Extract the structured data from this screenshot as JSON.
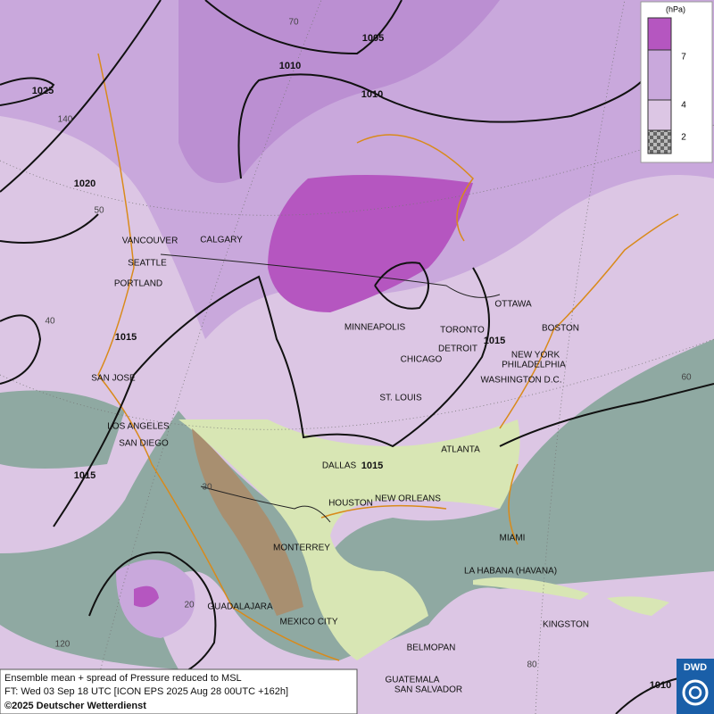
{
  "legend": {
    "unit": "(hPa)",
    "labels": [
      "7",
      "4",
      "2"
    ]
  },
  "cities": [
    "VANCOUVER",
    "CALGARY",
    "SEATTLE",
    "PORTLAND",
    "MINNEAPOLIS",
    "OTTAWA",
    "TORONTO",
    "BOSTON",
    "DETROIT",
    "CHICAGO",
    "NEW YORK",
    "PHILADELPHIA",
    "WASHINGTON D.C.",
    "ST. LOUIS",
    "SAN JOSE",
    "LOS ANGELES",
    "SAN DIEGO",
    "ATLANTA",
    "DALLAS",
    "HOUSTON",
    "NEW ORLEANS",
    "MIAMI",
    "MONTERREY",
    "LA HABANA (HAVANA)",
    "GUADALAJARA",
    "MEXICO CITY",
    "KINGSTON",
    "BELMOPAN",
    "GUATEMALA",
    "SAN SALVADOR"
  ],
  "isobars": [
    "1005",
    "1010",
    "1010",
    "1025",
    "1020",
    "1015",
    "1015",
    "1015",
    "1015",
    "1010"
  ],
  "graticule": [
    "70",
    "140",
    "50",
    "40",
    "60",
    "30",
    "20",
    "120",
    "80"
  ],
  "caption": {
    "line1": "Ensemble mean + spread of Pressure reduced to MSL",
    "line2": "FT: Wed 03 Sep 18 UTC [ICON EPS 2025 Aug 28 00UTC +162h]",
    "line3": "©2025 Deutscher Wetterdienst"
  },
  "logo": "DWD"
}
